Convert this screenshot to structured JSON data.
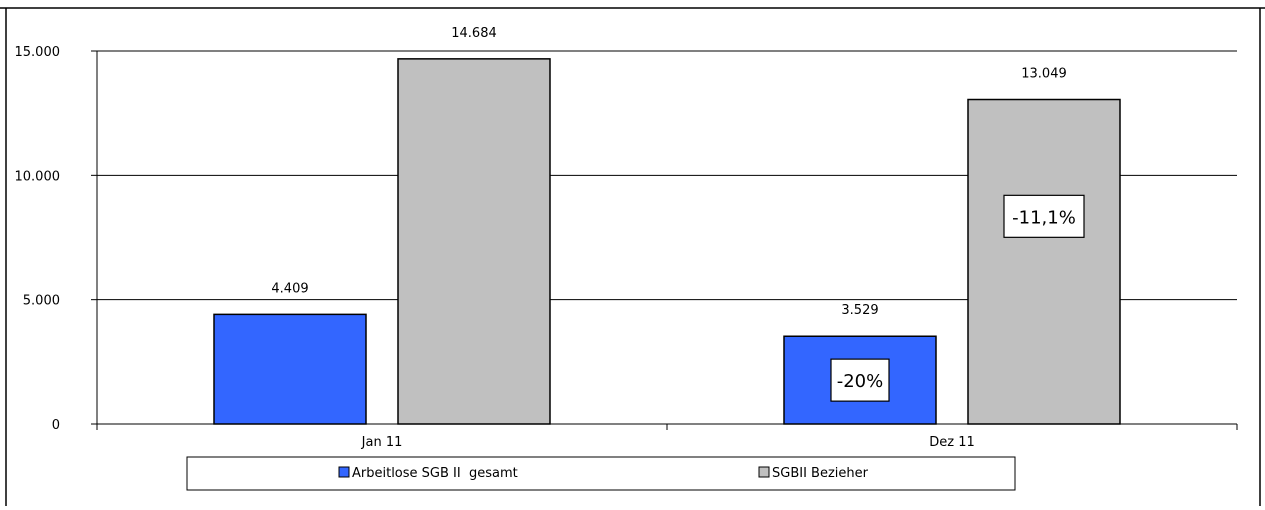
{
  "chart_data": {
    "type": "bar",
    "categories": [
      "Jan 11",
      "Dez 11"
    ],
    "series": [
      {
        "name": "Arbeitlose SGB II  gesamt",
        "values": [
          4409,
          3529
        ],
        "labels": [
          "4.409",
          "3.529"
        ],
        "color": "#3366ff"
      },
      {
        "name": "SGBII Bezieher",
        "values": [
          14684,
          13049
        ],
        "labels": [
          "14.684",
          "13.049"
        ],
        "color": "#c0c0c0"
      }
    ],
    "y_ticks": [
      {
        "value": 0,
        "label": "0"
      },
      {
        "value": 5000,
        "label": "5.000"
      },
      {
        "value": 10000,
        "label": "10.000"
      },
      {
        "value": 15000,
        "label": "15.000"
      }
    ],
    "ylim": [
      0,
      15000
    ],
    "grid": true,
    "legend_position": "bottom",
    "annotations": [
      {
        "text": "-20%",
        "series": 0,
        "category": 1
      },
      {
        "text": "-11,1%",
        "series": 1,
        "category": 1
      }
    ]
  }
}
